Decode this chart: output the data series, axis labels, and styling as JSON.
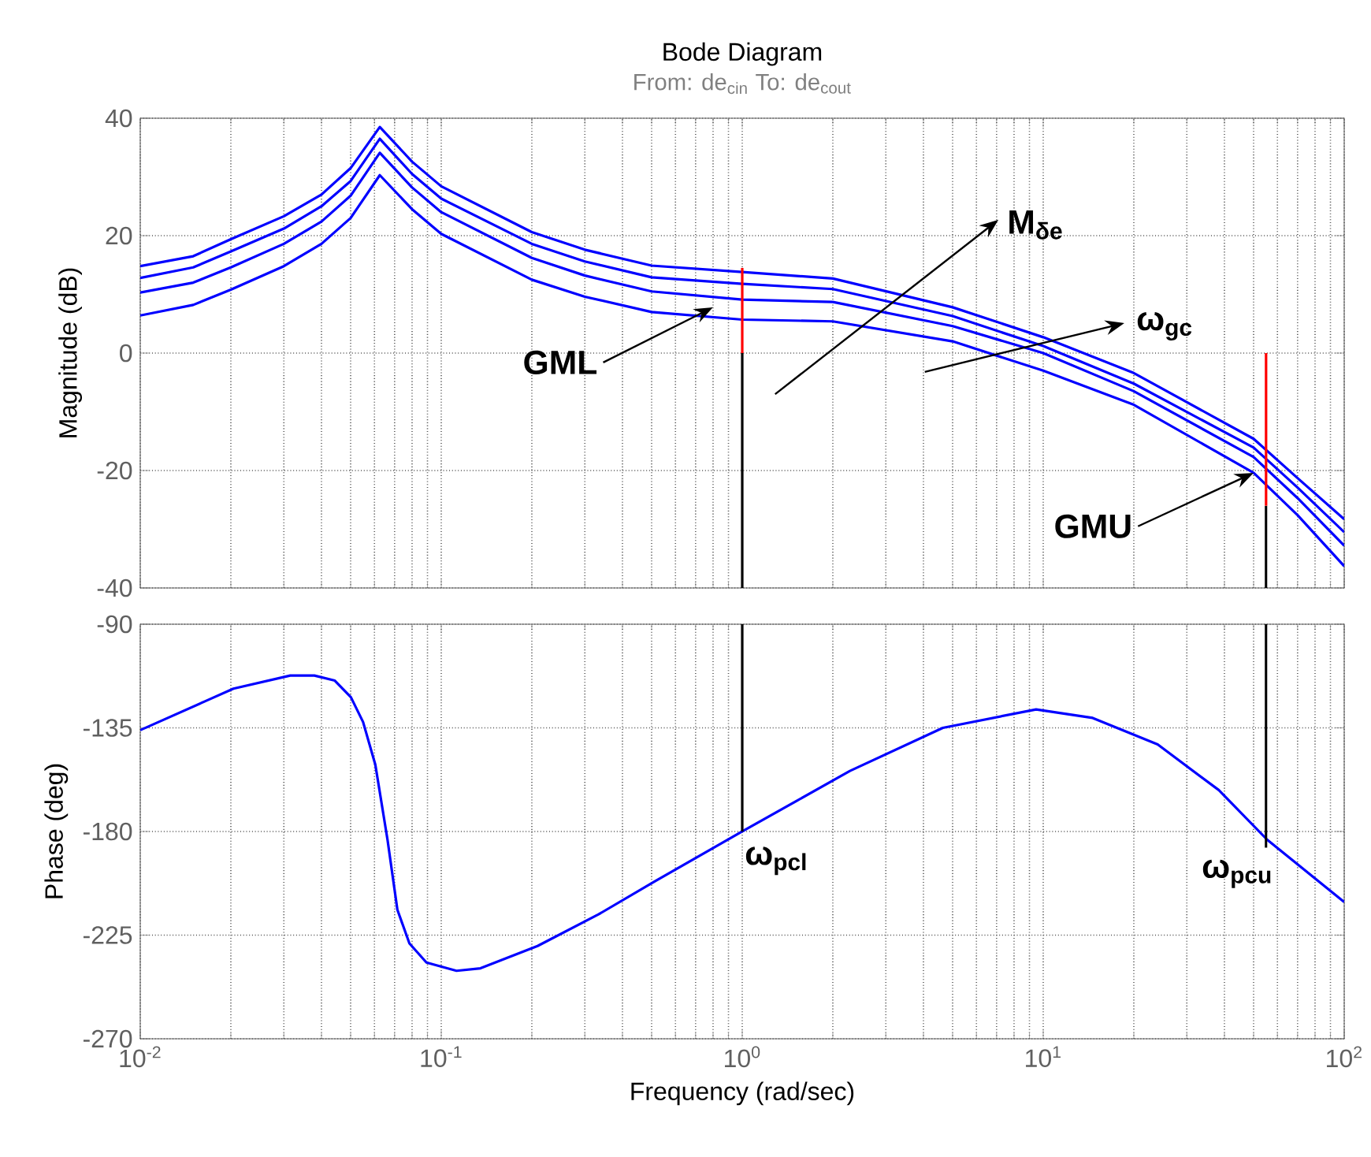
{
  "chart_data": [
    {
      "type": "line",
      "title": "Bode Diagram",
      "subtitle": "From: de$_{cin}$  To: de$_{cout}$",
      "ylabel": "Magnitude (dB)",
      "log": "x",
      "grid": true,
      "tick_labels": "y",
      "xlim": [
        0.01,
        100
      ],
      "xticks": [
        {
          "value": 0.01,
          "label": null
        },
        {
          "value": 0.1,
          "label": null
        },
        {
          "value": 1,
          "label": null
        },
        {
          "value": 10,
          "label": null
        },
        {
          "value": 100,
          "label": null
        }
      ],
      "ylim": [
        -40,
        40
      ],
      "yticks": [
        -40,
        -20,
        0,
        20,
        40
      ],
      "series": [
        {
          "color": "#0000ff",
          "x": [
            0.01,
            0.015,
            0.02,
            0.03,
            0.04,
            0.05,
            0.0625,
            0.08,
            0.1,
            0.2,
            0.3,
            0.5,
            1,
            2,
            5,
            10,
            20,
            50,
            70,
            100
          ],
          "values": [
            14.8,
            16.5,
            19.4,
            23.3,
            27,
            31.5,
            38.5,
            32.6,
            28.4,
            20.6,
            17.6,
            14.9,
            13.8,
            12.7,
            7.8,
            2.7,
            -3.4,
            -14.6,
            -21.3,
            -28.3
          ]
        },
        {
          "color": "#0000ff",
          "x": [
            0.01,
            0.015,
            0.02,
            0.03,
            0.04,
            0.05,
            0.0625,
            0.08,
            0.1,
            0.2,
            0.3,
            0.5,
            1,
            2,
            5,
            10,
            20,
            50,
            70,
            100
          ],
          "values": [
            12.8,
            14.6,
            17.3,
            21.2,
            25,
            29.3,
            36.5,
            30.5,
            26.3,
            18.6,
            15.6,
            12.9,
            11.8,
            10.9,
            6.3,
            1.2,
            -5.2,
            -16.1,
            -22.9,
            -30.5
          ]
        },
        {
          "color": "#0000ff",
          "x": [
            0.01,
            0.015,
            0.02,
            0.03,
            0.04,
            0.05,
            0.0625,
            0.08,
            0.1,
            0.2,
            0.3,
            0.5,
            1,
            2,
            5,
            10,
            20,
            50,
            70,
            100
          ],
          "values": [
            10.3,
            12.0,
            14.6,
            18.6,
            22.4,
            26.8,
            34.1,
            28.2,
            24,
            16.2,
            13.2,
            10.5,
            9.1,
            8.7,
            4.6,
            0,
            -6.5,
            -17.7,
            -24.7,
            -32.8
          ]
        },
        {
          "color": "#0000ff",
          "x": [
            0.01,
            0.015,
            0.02,
            0.03,
            0.04,
            0.05,
            0.0625,
            0.08,
            0.1,
            0.2,
            0.3,
            0.5,
            1,
            2,
            5,
            10,
            20,
            50,
            70,
            100
          ],
          "values": [
            6.4,
            8.2,
            10.8,
            14.8,
            18.6,
            23.0,
            30.3,
            24.5,
            20.3,
            12.5,
            9.6,
            7.0,
            5.7,
            5.4,
            2.0,
            -3.0,
            -8.8,
            -20.4,
            -27.6,
            -36.3
          ]
        },
        {
          "color": "#000000",
          "x": [
            1,
            1
          ],
          "values": [
            0,
            -40
          ]
        },
        {
          "color": "#000000",
          "x": [
            55,
            55
          ],
          "values": [
            -26,
            -40
          ]
        },
        {
          "color": "#ff0000",
          "x": [
            1,
            1
          ],
          "values": [
            14.5,
            0
          ]
        },
        {
          "color": "#ff0000",
          "x": [
            55,
            55
          ],
          "values": [
            0,
            -26
          ]
        }
      ],
      "annotations": [
        "GML",
        "M$_{δe}$",
        "ω$_{gc}$",
        {
          "text": "GMU",
          "x": 50,
          "y": -20.4
        }
      ]
    },
    {
      "type": "line",
      "ylabel": "Phase (deg)",
      "xlabel": "Frequency  (rad/sec)",
      "log": "x",
      "grid": true,
      "xlim": [
        0.01,
        100
      ],
      "xticks": [
        {
          "value": 0.01,
          "label": "10$^{-2}$"
        },
        {
          "value": 0.1,
          "label": "10$^{-1}$"
        },
        {
          "value": 1,
          "label": "10$^{0}$"
        },
        {
          "value": 10,
          "label": "10$^{1}$"
        },
        {
          "value": 100,
          "label": "10$^{2}$"
        }
      ],
      "ylim": [
        -270,
        -90
      ],
      "yticks": [
        -270,
        -225,
        -180,
        -135,
        -90
      ],
      "series": [
        {
          "color": "#0000ff",
          "x": [
            0.01,
            0.0164,
            0.0204,
            0.0315,
            0.0379,
            0.0443,
            0.0501,
            0.055,
            0.0604,
            0.0663,
            0.0715,
            0.0784,
            0.0893,
            0.1124,
            0.135,
            0.209,
            0.333,
            0.513,
            1,
            2.28,
            4.64,
            9.47,
            14.6,
            24.0,
            38.3,
            55.5,
            100
          ],
          "values": [
            -136,
            -123.5,
            -118,
            -112.3,
            -112.3,
            -114.5,
            -121.7,
            -132.5,
            -151,
            -183.6,
            -214,
            -228.6,
            -236.9,
            -240.5,
            -239.4,
            -229.7,
            -216,
            -201.6,
            -180,
            -153.7,
            -135,
            -127,
            -130.7,
            -142.2,
            -162,
            -183.6,
            -210.6
          ]
        },
        {
          "color": "#000000",
          "x": [
            1,
            1
          ],
          "values": [
            -90,
            -180
          ]
        },
        {
          "color": "#000000",
          "x": [
            55,
            55
          ],
          "values": [
            -90,
            -187
          ]
        }
      ],
      "annotations": [
        "ω$_{pcl}$",
        "ω$_{pcu}$"
      ]
    }
  ]
}
